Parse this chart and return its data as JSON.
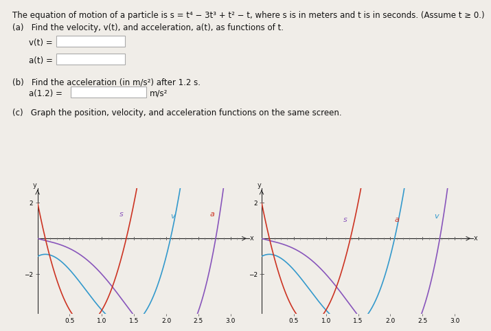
{
  "title_text": "The equation of motion of a particle is s = t⁴ − 3t³ + t² − t, where s is in meters and t is in seconds. (Assume t ≥ 0.)",
  "part_a_text": "(a)   Find the velocity, v(t), and acceleration, a(t), as functions of t.",
  "vt_label": "v(t) =",
  "at_label": "a(t) =",
  "part_b_text": "(b)   Find the acceleration (in m/s²) after 1.2 s.",
  "a12_label": "a(1.2) =",
  "a12_unit": "m/s²",
  "part_c_text": "(c)   Graph the position, velocity, and acceleration functions on the same screen.",
  "xlim": [
    0,
    3.3
  ],
  "ylim": [
    -4.2,
    2.8
  ],
  "xticks": [
    0.5,
    1.0,
    1.5,
    2.0,
    2.5,
    3.0
  ],
  "yticks": [
    -2,
    2
  ],
  "color_s": "#8855BB",
  "color_v": "#3399CC",
  "color_a": "#CC3322",
  "label_s": "s",
  "label_v": "v",
  "label_a": "a",
  "bg_color": "#f0ede8",
  "axes_color": "#333333",
  "tick_fontsize": 7,
  "label_fontsize": 9,
  "text_fontsize": 8.5
}
